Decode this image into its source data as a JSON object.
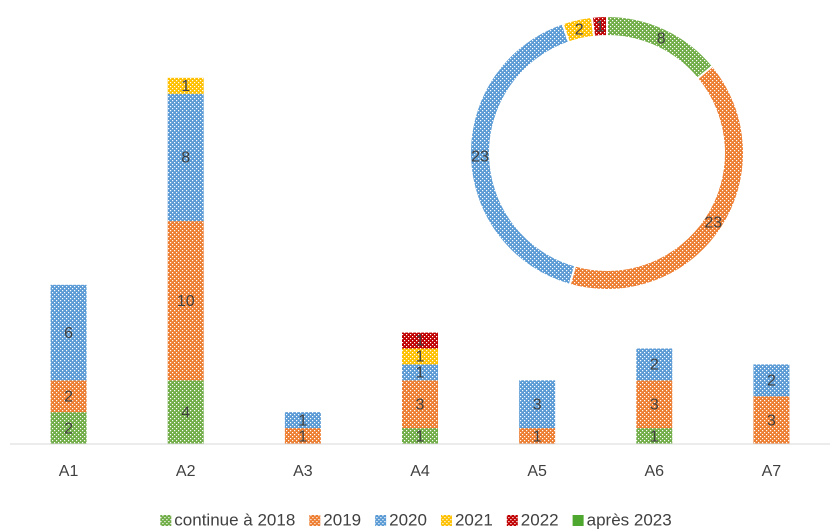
{
  "chart_data": [
    {
      "type": "bar",
      "stacked": true,
      "categories": [
        "A1",
        "A2",
        "A3",
        "A4",
        "A5",
        "A6",
        "A7"
      ],
      "ylim": [
        0,
        25
      ],
      "series": [
        {
          "name": "continue à 2018",
          "color": "#70ad47",
          "fill": "dotted",
          "values": [
            2,
            4,
            null,
            1,
            null,
            1,
            null
          ]
        },
        {
          "name": "2019",
          "color": "#ed7d31",
          "fill": "dotted",
          "values": [
            2,
            10,
            1,
            3,
            1,
            3,
            3
          ]
        },
        {
          "name": "2020",
          "color": "#5b9bd5",
          "fill": "dotted",
          "values": [
            6,
            8,
            1,
            1,
            3,
            2,
            2
          ]
        },
        {
          "name": "2021",
          "color": "#ffc000",
          "fill": "dotted",
          "values": [
            null,
            1,
            null,
            1,
            null,
            null,
            null
          ]
        },
        {
          "name": "2022",
          "color": "#c00000",
          "fill": "dotted",
          "values": [
            null,
            null,
            null,
            1,
            null,
            null,
            null
          ]
        },
        {
          "name": "après 2023",
          "color": "#4ea72e",
          "fill": "solid",
          "values": [
            null,
            null,
            null,
            null,
            null,
            null,
            null
          ]
        }
      ],
      "legend": "bottom"
    },
    {
      "type": "doughnut",
      "values": [
        8,
        23,
        23,
        2,
        1
      ],
      "colors": [
        "#70ad47",
        "#ed7d31",
        "#5b9bd5",
        "#ffc000",
        "#c00000"
      ]
    }
  ]
}
